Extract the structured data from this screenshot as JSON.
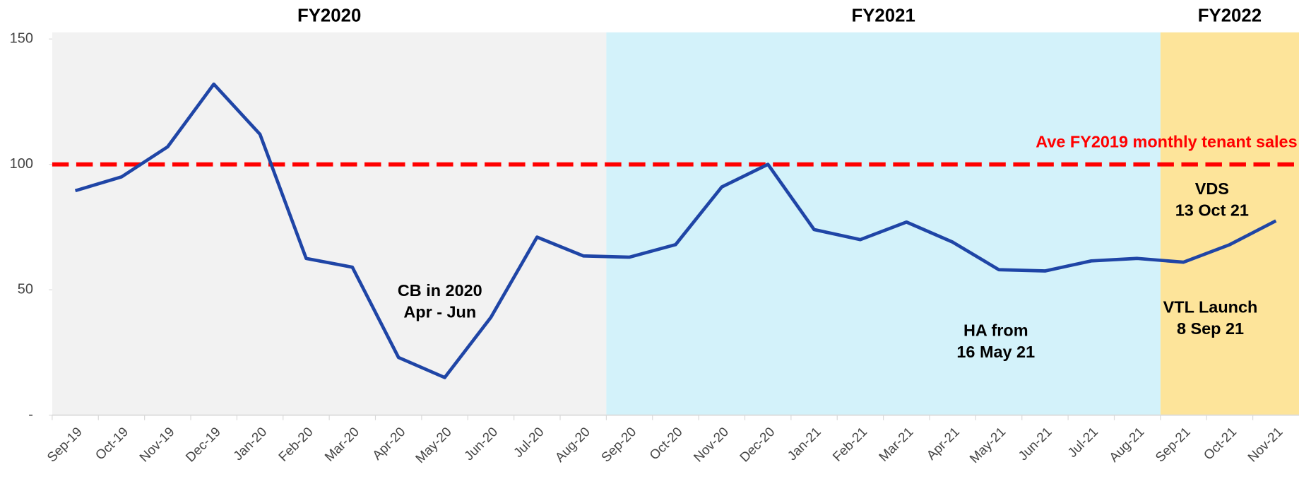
{
  "chart_data": {
    "type": "line",
    "categories": [
      "Sep-19",
      "Oct-19",
      "Nov-19",
      "Dec-19",
      "Jan-20",
      "Feb-20",
      "Mar-20",
      "Apr-20",
      "May-20",
      "Jun-20",
      "Jul-20",
      "Aug-20",
      "Sep-20",
      "Oct-20",
      "Nov-20",
      "Dec-20",
      "Jan-21",
      "Feb-21",
      "Mar-21",
      "Apr-21",
      "May-21",
      "Jun-21",
      "Jul-21",
      "Aug-21",
      "Sep-21",
      "Oct-21",
      "Nov-21"
    ],
    "values": [
      89.5,
      95,
      107,
      132,
      112,
      62.5,
      59,
      23,
      15,
      39,
      71,
      63.5,
      63,
      68,
      91,
      100,
      74,
      70,
      77,
      69,
      58,
      57.5,
      61.5,
      62.5,
      61,
      68,
      77.5
    ],
    "color": "#1f45a6",
    "ylim": [
      0,
      150
    ],
    "yticks": [
      {
        "value": 0,
        "label": "-"
      },
      50,
      100,
      150
    ],
    "regions": [
      {
        "label": "FY2020",
        "color": "#f2f2f2",
        "start": "Sep-19",
        "end": "Aug-20"
      },
      {
        "label": "FY2021",
        "color": "#d3f2fa",
        "start": "Sep-20",
        "end": "Aug-21"
      },
      {
        "label": "FY2022",
        "color": "#fde49a",
        "start": "Sep-21",
        "end": "Nov-21"
      }
    ],
    "reference_line": {
      "value": 100,
      "label": "Ave FY2019 monthly tenant sales",
      "color": "#ff0000"
    },
    "annotations": [
      {
        "lines": [
          "CB in 2020",
          "Apr - Jun"
        ]
      },
      {
        "lines": [
          "HA from",
          "16 May 21"
        ]
      },
      {
        "lines": [
          "VTL Launch",
          "8 Sep 21"
        ]
      },
      {
        "lines": [
          "VDS",
          "13 Oct 21"
        ]
      }
    ]
  }
}
